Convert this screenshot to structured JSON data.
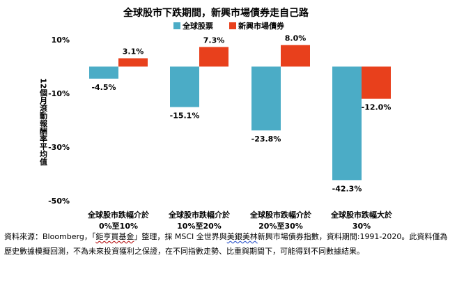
{
  "chart_data": {
    "type": "bar",
    "title": "全球股市下跌期間，新興市場債券走自己路",
    "ylabel": "12個月滾動報酬率平均值",
    "xlabel": "",
    "ylim": [
      -50,
      10
    ],
    "yticks": [
      10,
      -10,
      -30,
      -50
    ],
    "ytick_labels": [
      "10%",
      "-10%",
      "-30%",
      "-50%"
    ],
    "grid": false,
    "legend_position": "top",
    "categories": [
      [
        "全球股市跌幅介於",
        "0%至10%"
      ],
      [
        "全球股市跌幅介於",
        "10%至20%"
      ],
      [
        "全球股市跌幅介於",
        "20%至30%"
      ],
      [
        "全球股市跌幅大於",
        "30%"
      ]
    ],
    "series": [
      {
        "name": "全球股票",
        "color": "#4BACC6",
        "values": [
          -4.5,
          -15.1,
          -23.8,
          -42.3
        ],
        "labels": [
          "-4.5%",
          "-15.1%",
          "-23.8%",
          "-42.3%"
        ]
      },
      {
        "name": "新興市場債券",
        "color": "#E8401C",
        "values": [
          3.1,
          7.3,
          8.0,
          -12.0
        ],
        "labels": [
          "3.1%",
          "7.3%",
          "8.0%",
          "-12.0%"
        ]
      }
    ]
  },
  "source_note": {
    "part1": "資料來源：Bloomberg，「",
    "fund": "鉅亨買基金",
    "part2": "」整理，採 MSCI 全世界與",
    "index_name": "美銀美林",
    "part3": "新興市場債券指數，資料期間:1991-2020。此資料僅為歷史數據模擬回測，不為未來投資獲利之保證，在不同指數走勢、比重與期間下，可能得到不同數據結果。"
  }
}
